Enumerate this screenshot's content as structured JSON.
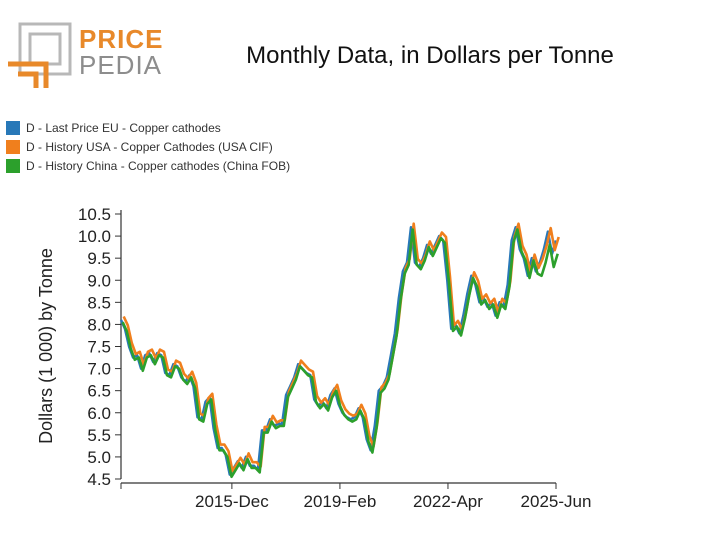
{
  "header": {
    "logo_line1": "PRICE",
    "logo_line2": "PEDIA",
    "title": "Monthly Data, in Dollars per Tonne"
  },
  "colors": {
    "logo_orange": "#e8892a",
    "logo_gray": "#b8b8b8"
  },
  "chart_data": {
    "type": "line",
    "title": "Monthly Data, in Dollars per Tonne",
    "xlabel": "",
    "ylabel": "Dollars (1 000) by Tonne",
    "ylim": [
      4.5,
      10.5
    ],
    "yticks": [
      "10.5",
      "10.0",
      "9.5",
      "9.0",
      "8.5",
      "8.0",
      "7.5",
      "7.0",
      "6.5",
      "6.0",
      "5.5",
      "5.0",
      "4.5"
    ],
    "xticks": [
      "2015-Dec",
      "2019-Feb",
      "2022-Apr",
      "2025-Jun"
    ],
    "grid": false,
    "legend_position": "top-left",
    "series": [
      {
        "name": "D - Last Price EU - Copper cathodes",
        "color": "#2878b8",
        "values": [
          [
            "2012-09",
            8.1
          ],
          [
            "2012-10",
            7.9
          ],
          [
            "2012-11",
            7.5
          ],
          [
            "2012-12",
            7.25
          ],
          [
            "2013-01",
            7.3
          ],
          [
            "2013-02",
            7.0
          ],
          [
            "2013-03",
            7.3
          ],
          [
            "2013-04",
            7.35
          ],
          [
            "2013-05",
            7.15
          ],
          [
            "2013-06",
            7.35
          ],
          [
            "2013-07",
            7.3
          ],
          [
            "2013-08",
            6.9
          ],
          [
            "2013-09",
            6.85
          ],
          [
            "2013-10",
            7.1
          ],
          [
            "2013-11",
            7.05
          ],
          [
            "2013-12",
            6.8
          ],
          [
            "2014-01",
            6.7
          ],
          [
            "2014-02",
            6.85
          ],
          [
            "2014-03",
            6.6
          ],
          [
            "2014-04",
            5.9
          ],
          [
            "2014-05",
            5.85
          ],
          [
            "2014-06",
            6.25
          ],
          [
            "2014-07",
            6.35
          ],
          [
            "2014-08",
            5.65
          ],
          [
            "2014-09",
            5.2
          ],
          [
            "2014-10",
            5.2
          ],
          [
            "2014-11",
            5.05
          ],
          [
            "2014-12",
            4.6
          ],
          [
            "2015-01",
            4.75
          ],
          [
            "2015-02",
            4.9
          ],
          [
            "2015-03",
            4.75
          ],
          [
            "2015-04",
            5.0
          ],
          [
            "2015-05",
            4.8
          ],
          [
            "2015-06",
            4.8
          ],
          [
            "2015-07",
            4.7
          ],
          [
            "2015-08",
            5.6
          ],
          [
            "2015-09",
            5.6
          ],
          [
            "2015-10",
            5.85
          ],
          [
            "2015-11",
            5.7
          ],
          [
            "2015-12",
            5.75
          ],
          [
            "2016-01",
            5.75
          ],
          [
            "2016-02",
            6.4
          ],
          [
            "2016-03",
            6.6
          ],
          [
            "2016-04",
            6.8
          ],
          [
            "2016-05",
            7.1
          ],
          [
            "2016-06",
            7.0
          ],
          [
            "2016-07",
            6.9
          ],
          [
            "2016-08",
            6.85
          ],
          [
            "2016-09",
            6.3
          ],
          [
            "2016-10",
            6.15
          ],
          [
            "2016-11",
            6.25
          ],
          [
            "2016-12",
            6.1
          ],
          [
            "2017-01",
            6.4
          ],
          [
            "2017-02",
            6.55
          ],
          [
            "2017-03",
            6.2
          ],
          [
            "2017-04",
            6.0
          ],
          [
            "2017-05",
            5.9
          ],
          [
            "2017-06",
            5.85
          ],
          [
            "2017-07",
            5.9
          ],
          [
            "2017-08",
            6.1
          ],
          [
            "2017-09",
            5.9
          ],
          [
            "2017-10",
            5.4
          ],
          [
            "2017-11",
            5.15
          ],
          [
            "2017-12",
            5.7
          ],
          [
            "2018-01",
            6.5
          ],
          [
            "2018-02",
            6.6
          ],
          [
            "2018-03",
            6.8
          ],
          [
            "2018-04",
            7.3
          ],
          [
            "2018-05",
            7.8
          ],
          [
            "2018-06",
            8.6
          ],
          [
            "2018-07",
            9.2
          ],
          [
            "2018-08",
            9.4
          ],
          [
            "2018-09",
            10.2
          ],
          [
            "2018-10",
            9.4
          ],
          [
            "2018-11",
            9.3
          ],
          [
            "2018-12",
            9.5
          ],
          [
            "2018-13",
            9.8
          ],
          [
            "2019-02",
            9.6
          ],
          [
            "2019-03",
            9.8
          ],
          [
            "2019-04",
            10.0
          ],
          [
            "2019-05",
            9.9
          ],
          [
            "2019-06",
            9.0
          ],
          [
            "2019-07",
            7.9
          ],
          [
            "2019-08",
            8.0
          ],
          [
            "2019-09",
            7.8
          ],
          [
            "2019-10",
            8.2
          ],
          [
            "2019-11",
            8.7
          ],
          [
            "2019-12",
            9.1
          ],
          [
            "2020-01",
            8.9
          ],
          [
            "2020-02",
            8.5
          ],
          [
            "2020-03",
            8.6
          ],
          [
            "2020-04",
            8.4
          ],
          [
            "2020-05",
            8.5
          ],
          [
            "2020-06",
            8.2
          ],
          [
            "2020-07",
            8.5
          ],
          [
            "2020-08",
            8.4
          ],
          [
            "2020-09",
            8.9
          ],
          [
            "2020-10",
            9.9
          ],
          [
            "2020-11",
            10.2
          ],
          [
            "2020-12",
            9.7
          ],
          [
            "2021-01",
            9.5
          ],
          [
            "2021-02",
            9.1
          ],
          [
            "2021-03",
            9.5
          ],
          [
            "2021-04",
            9.2
          ],
          [
            "2021-05",
            9.4
          ],
          [
            "2021-06",
            9.7
          ],
          [
            "2021-07",
            10.1
          ],
          [
            "2021-08",
            9.6
          ],
          [
            "2021-09",
            9.9
          ]
        ]
      },
      {
        "name": "D - History USA - Copper Cathodes (USA CIF)",
        "color": "#f07f1d",
        "values": []
      },
      {
        "name": "D - History China - Copper cathodes (China FOB)",
        "color": "#2ca02c",
        "values": []
      }
    ]
  }
}
